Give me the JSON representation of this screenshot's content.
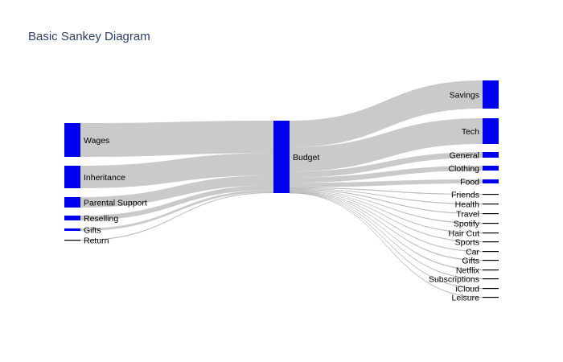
{
  "title": "Basic Sankey Diagram",
  "colors": {
    "node": "#0000ee",
    "link": "#b3b3b3",
    "title": "#2a3f5f",
    "background": "#ffffff"
  },
  "chart_data": {
    "type": "sankey",
    "nodes": [
      {
        "id": "wages",
        "label": "Wages",
        "column": 0
      },
      {
        "id": "inheritance",
        "label": "Inheritance",
        "column": 0
      },
      {
        "id": "parental",
        "label": "Parental Support",
        "column": 0
      },
      {
        "id": "reselling",
        "label": "Reselling",
        "column": 0
      },
      {
        "id": "gifts_in",
        "label": "Gifts",
        "column": 0
      },
      {
        "id": "return",
        "label": "Return",
        "column": 0
      },
      {
        "id": "budget",
        "label": "Budget",
        "column": 1
      },
      {
        "id": "savings",
        "label": "Savings",
        "column": 2
      },
      {
        "id": "tech",
        "label": "Tech",
        "column": 2
      },
      {
        "id": "general",
        "label": "General",
        "column": 2
      },
      {
        "id": "clothing",
        "label": "Clothing",
        "column": 2
      },
      {
        "id": "food",
        "label": "Food",
        "column": 2
      },
      {
        "id": "friends",
        "label": "Friends",
        "column": 2
      },
      {
        "id": "health",
        "label": "Health",
        "column": 2
      },
      {
        "id": "travel",
        "label": "Travel",
        "column": 2
      },
      {
        "id": "spotify",
        "label": "Spotify",
        "column": 2
      },
      {
        "id": "haircut",
        "label": "Hair Cut",
        "column": 2
      },
      {
        "id": "sports",
        "label": "Sports",
        "column": 2
      },
      {
        "id": "car",
        "label": "Car",
        "column": 2
      },
      {
        "id": "gifts_out",
        "label": "Gifts",
        "column": 2
      },
      {
        "id": "netflix",
        "label": "Netflix",
        "column": 2
      },
      {
        "id": "subscriptions",
        "label": "Subscriptions",
        "column": 2
      },
      {
        "id": "icloud",
        "label": "iCloud",
        "column": 2
      },
      {
        "id": "leisure",
        "label": "Leisure",
        "column": 2
      }
    ],
    "links": [
      {
        "source": "wages",
        "target": "budget",
        "value": 42
      },
      {
        "source": "inheritance",
        "target": "budget",
        "value": 29
      },
      {
        "source": "parental",
        "target": "budget",
        "value": 13
      },
      {
        "source": "reselling",
        "target": "budget",
        "value": 6
      },
      {
        "source": "gifts_in",
        "target": "budget",
        "value": 3
      },
      {
        "source": "return",
        "target": "budget",
        "value": 1
      },
      {
        "source": "budget",
        "target": "savings",
        "value": 35
      },
      {
        "source": "budget",
        "target": "tech",
        "value": 32
      },
      {
        "source": "budget",
        "target": "general",
        "value": 8
      },
      {
        "source": "budget",
        "target": "clothing",
        "value": 7
      },
      {
        "source": "budget",
        "target": "food",
        "value": 6
      },
      {
        "source": "budget",
        "target": "friends",
        "value": 1
      },
      {
        "source": "budget",
        "target": "health",
        "value": 0.8
      },
      {
        "source": "budget",
        "target": "travel",
        "value": 1.2
      },
      {
        "source": "budget",
        "target": "spotify",
        "value": 0.7
      },
      {
        "source": "budget",
        "target": "haircut",
        "value": 0.6
      },
      {
        "source": "budget",
        "target": "sports",
        "value": 0.6
      },
      {
        "source": "budget",
        "target": "car",
        "value": 0.5
      },
      {
        "source": "budget",
        "target": "gifts_out",
        "value": 0.5
      },
      {
        "source": "budget",
        "target": "netflix",
        "value": 0.5
      },
      {
        "source": "budget",
        "target": "subscriptions",
        "value": 0.4
      },
      {
        "source": "budget",
        "target": "icloud",
        "value": 0.4
      },
      {
        "source": "budget",
        "target": "leisure",
        "value": 0.3
      }
    ]
  }
}
